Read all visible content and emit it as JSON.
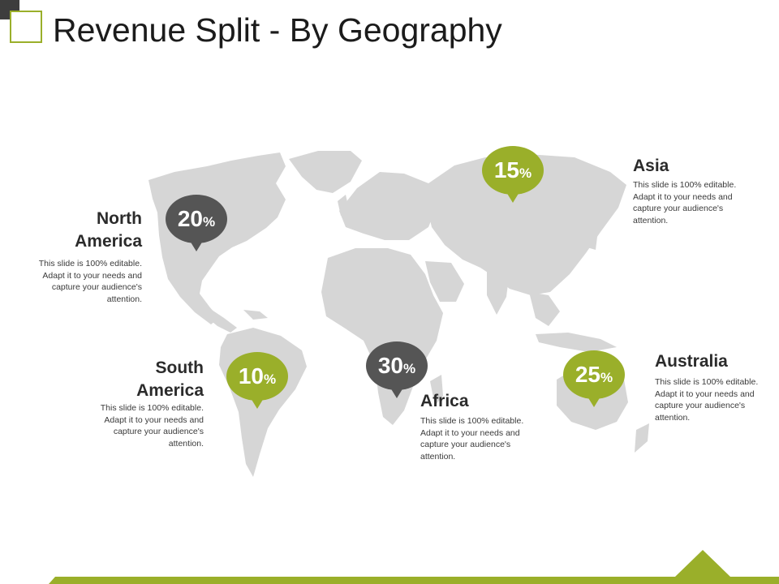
{
  "slide": {
    "title": "Revenue Split - By Geography"
  },
  "colors": {
    "accent_green": "#9aaf2a",
    "dark_gray": "#555555",
    "map_gray": "#d6d6d6"
  },
  "regions": [
    {
      "name": "North America",
      "title_lines": [
        "North",
        "America"
      ],
      "value": "20",
      "unit": "%",
      "style": "dark",
      "description": "This slide is 100% editable. Adapt it to your needs and capture your audience's attention."
    },
    {
      "name": "South America",
      "title_lines": [
        "South",
        "America"
      ],
      "value": "10",
      "unit": "%",
      "style": "green",
      "description": "This slide is 100% editable. Adapt it to your needs and capture your audience's attention."
    },
    {
      "name": "Africa",
      "title_lines": [
        "Africa"
      ],
      "value": "30",
      "unit": "%",
      "style": "dark",
      "description": "This slide is 100% editable. Adapt it to your needs and capture your audience's attention."
    },
    {
      "name": "Asia",
      "title_lines": [
        "Asia"
      ],
      "value": "15",
      "unit": "%",
      "style": "green",
      "description": "This slide is 100% editable. Adapt it to your needs and capture your audience's attention."
    },
    {
      "name": "Australia",
      "title_lines": [
        "Australia"
      ],
      "value": "25",
      "unit": "%",
      "style": "green",
      "description": "This slide is 100% editable. Adapt it to your needs and capture your audience's attention."
    }
  ]
}
